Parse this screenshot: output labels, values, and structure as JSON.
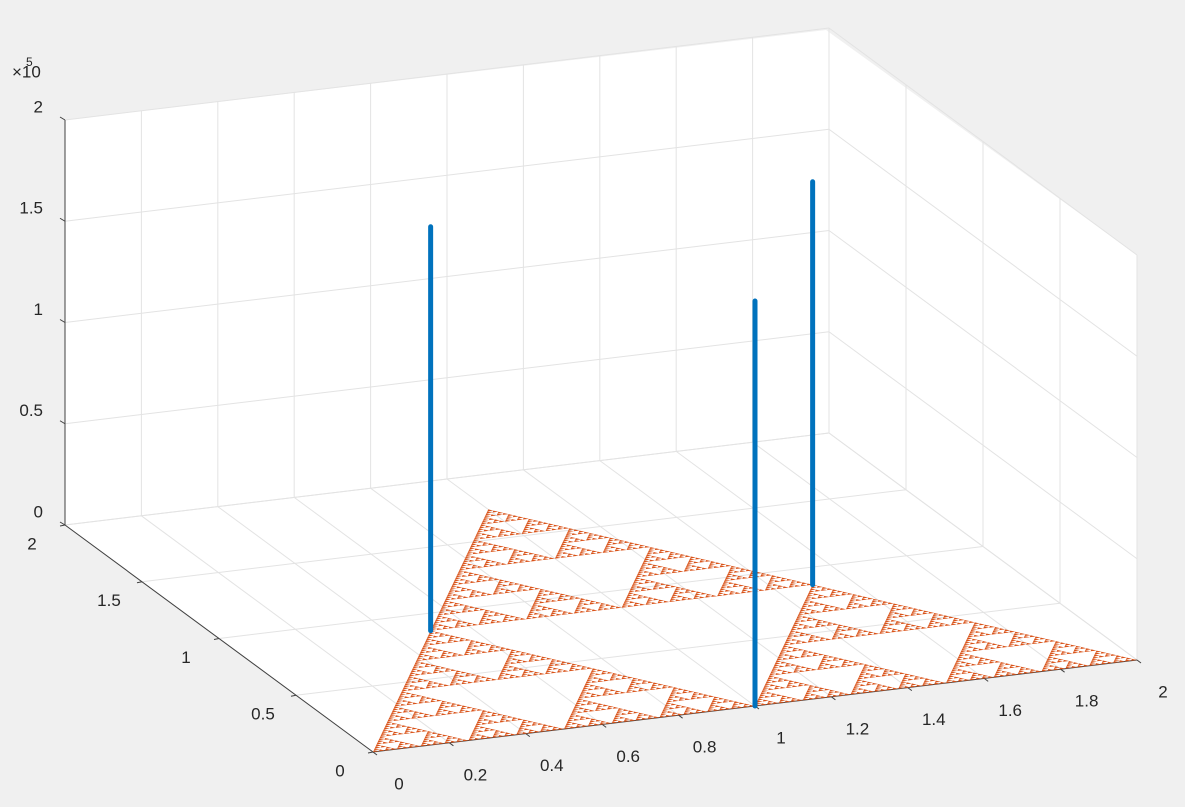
{
  "chart_data": {
    "type": "stem3",
    "xlim": [
      0,
      2
    ],
    "ylim": [
      0,
      2
    ],
    "zlim": [
      0,
      200000
    ],
    "xticks": [
      0,
      0.2,
      0.4,
      0.6,
      0.8,
      1,
      1.2,
      1.4,
      1.6,
      1.8,
      2
    ],
    "yticks": [
      0,
      0.5,
      1,
      1.5,
      2
    ],
    "zticks": [
      {
        "value": 0,
        "label": "0"
      },
      {
        "value": 50000,
        "label": "0.5"
      },
      {
        "value": 100000,
        "label": "1"
      },
      {
        "value": 150000,
        "label": "1.5"
      },
      {
        "value": 200000,
        "label": "2"
      }
    ],
    "z_multiplier": {
      "base": "×10",
      "exponent": "5"
    },
    "grid": true,
    "triangle": {
      "color": "#d95319",
      "x": [
        0,
        2,
        1
      ],
      "y": [
        0,
        0,
        1.732
      ]
    },
    "stems": {
      "color": "#0072bd",
      "x": [
        0.5,
        1,
        1.5
      ],
      "y": [
        0.866,
        0,
        0.866
      ],
      "z": [
        199500,
        200000,
        199000
      ]
    }
  }
}
